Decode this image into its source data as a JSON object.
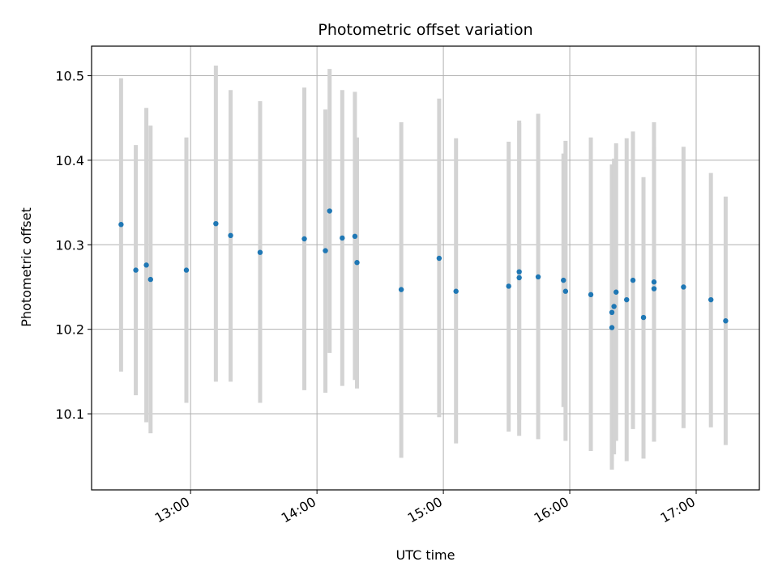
{
  "chart_data": {
    "type": "scatter",
    "title": "Photometric offset variation",
    "xlabel": "UTC time",
    "ylabel": "Photometric offset",
    "x_axis": "time",
    "xlim": [
      "12:13",
      "17:30"
    ],
    "ylim": [
      10.01,
      10.535
    ],
    "x_ticks": [
      "13:00",
      "14:00",
      "15:00",
      "16:00",
      "17:00"
    ],
    "y_ticks": [
      "10.1",
      "10.2",
      "10.3",
      "10.4",
      "10.5"
    ],
    "grid": true,
    "errorbar_color": "#d3d3d3",
    "point_color": "#1f77b4",
    "points": [
      {
        "x": "12:27",
        "y": 10.324,
        "ylow": 10.15,
        "yhigh": 10.497
      },
      {
        "x": "12:34",
        "y": 10.27,
        "ylow": 10.122,
        "yhigh": 10.418
      },
      {
        "x": "12:39",
        "y": 10.276,
        "ylow": 10.09,
        "yhigh": 10.462
      },
      {
        "x": "12:41",
        "y": 10.259,
        "ylow": 10.077,
        "yhigh": 10.441
      },
      {
        "x": "12:58",
        "y": 10.27,
        "ylow": 10.113,
        "yhigh": 10.427
      },
      {
        "x": "13:12",
        "y": 10.325,
        "ylow": 10.138,
        "yhigh": 10.512
      },
      {
        "x": "13:19",
        "y": 10.311,
        "ylow": 10.138,
        "yhigh": 10.483
      },
      {
        "x": "13:33",
        "y": 10.291,
        "ylow": 10.113,
        "yhigh": 10.47
      },
      {
        "x": "13:54",
        "y": 10.307,
        "ylow": 10.128,
        "yhigh": 10.486
      },
      {
        "x": "14:04",
        "y": 10.293,
        "ylow": 10.125,
        "yhigh": 10.46
      },
      {
        "x": "14:06",
        "y": 10.34,
        "ylow": 10.172,
        "yhigh": 10.508
      },
      {
        "x": "14:12",
        "y": 10.308,
        "ylow": 10.133,
        "yhigh": 10.483
      },
      {
        "x": "14:18",
        "y": 10.31,
        "ylow": 10.14,
        "yhigh": 10.481
      },
      {
        "x": "14:19",
        "y": 10.279,
        "ylow": 10.13,
        "yhigh": 10.427
      },
      {
        "x": "14:40",
        "y": 10.247,
        "ylow": 10.048,
        "yhigh": 10.445
      },
      {
        "x": "14:58",
        "y": 10.284,
        "ylow": 10.096,
        "yhigh": 10.473
      },
      {
        "x": "15:06",
        "y": 10.245,
        "ylow": 10.065,
        "yhigh": 10.426
      },
      {
        "x": "15:31",
        "y": 10.251,
        "ylow": 10.079,
        "yhigh": 10.422
      },
      {
        "x": "15:36",
        "y": 10.261,
        "ylow": 10.074,
        "yhigh": 10.447
      },
      {
        "x": "15:36",
        "y": 10.268,
        "ylow": 10.093,
        "yhigh": 10.444
      },
      {
        "x": "15:45",
        "y": 10.262,
        "ylow": 10.07,
        "yhigh": 10.455
      },
      {
        "x": "15:57",
        "y": 10.258,
        "ylow": 10.108,
        "yhigh": 10.408
      },
      {
        "x": "15:58",
        "y": 10.245,
        "ylow": 10.068,
        "yhigh": 10.423
      },
      {
        "x": "16:10",
        "y": 10.241,
        "ylow": 10.056,
        "yhigh": 10.427
      },
      {
        "x": "16:20",
        "y": 10.202,
        "ylow": 10.034,
        "yhigh": 10.389
      },
      {
        "x": "16:20",
        "y": 10.22,
        "ylow": 10.045,
        "yhigh": 10.395
      },
      {
        "x": "16:21",
        "y": 10.227,
        "ylow": 10.052,
        "yhigh": 10.402
      },
      {
        "x": "16:22",
        "y": 10.244,
        "ylow": 10.068,
        "yhigh": 10.42
      },
      {
        "x": "16:27",
        "y": 10.235,
        "ylow": 10.044,
        "yhigh": 10.426
      },
      {
        "x": "16:30",
        "y": 10.258,
        "ylow": 10.082,
        "yhigh": 10.434
      },
      {
        "x": "16:35",
        "y": 10.214,
        "ylow": 10.047,
        "yhigh": 10.38
      },
      {
        "x": "16:40",
        "y": 10.248,
        "ylow": 10.081,
        "yhigh": 10.415
      },
      {
        "x": "16:40",
        "y": 10.256,
        "ylow": 10.067,
        "yhigh": 10.445
      },
      {
        "x": "16:54",
        "y": 10.25,
        "ylow": 10.083,
        "yhigh": 10.416
      },
      {
        "x": "17:07",
        "y": 10.235,
        "ylow": 10.084,
        "yhigh": 10.385
      },
      {
        "x": "17:14",
        "y": 10.21,
        "ylow": 10.063,
        "yhigh": 10.357
      }
    ]
  }
}
